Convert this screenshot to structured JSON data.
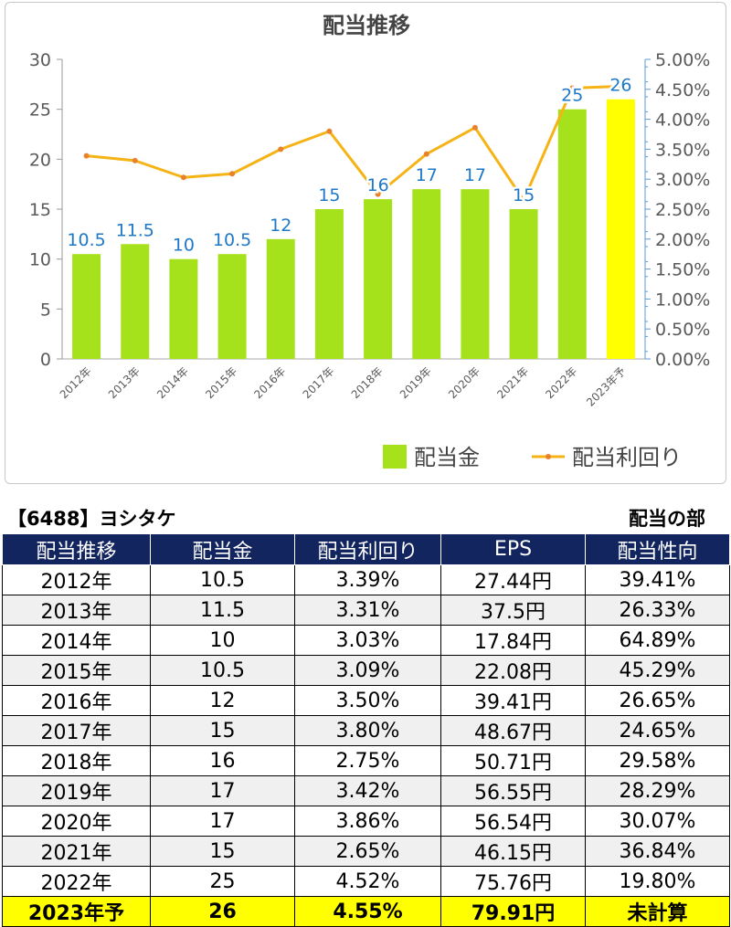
{
  "chart_data": {
    "type": "bar",
    "title": "配当推移",
    "categories": [
      "2012年",
      "2013年",
      "2014年",
      "2015年",
      "2016年",
      "2017年",
      "2018年",
      "2019年",
      "2020年",
      "2021年",
      "2022年",
      "2023年予"
    ],
    "series": [
      {
        "name": "配当金",
        "type": "bar",
        "axis": "left",
        "values": [
          10.5,
          11.5,
          10,
          10.5,
          12,
          15,
          16,
          17,
          17,
          15,
          25,
          26
        ],
        "labels": [
          "10.5",
          "11.5",
          "10",
          "10.5",
          "12",
          "15",
          "16",
          "17",
          "17",
          "15",
          "25",
          "26"
        ],
        "color": "#a6e21b",
        "highlight_color": "#ffff00"
      },
      {
        "name": "配当利回り",
        "type": "line",
        "axis": "right",
        "values": [
          3.39,
          3.31,
          3.03,
          3.09,
          3.5,
          3.8,
          2.75,
          3.42,
          3.86,
          2.65,
          4.52,
          4.55
        ],
        "color": "#f5b316"
      }
    ],
    "y_left": {
      "min": 0,
      "max": 30,
      "ticks": [
        "0",
        "5",
        "10",
        "15",
        "20",
        "25",
        "30"
      ]
    },
    "y_right": {
      "min": 0,
      "max": 5,
      "ticks": [
        "0.00%",
        "0.50%",
        "1.00%",
        "1.50%",
        "2.00%",
        "2.50%",
        "3.00%",
        "3.50%",
        "4.00%",
        "4.50%",
        "5.00%"
      ]
    },
    "grid": false,
    "legend_position": "bottom-right",
    "label_color": "#1e78c8"
  },
  "table": {
    "company": "【6488】ヨシタケ",
    "section": "配当の部",
    "headers": [
      "配当推移",
      "配当金",
      "配当利回り",
      "EPS",
      "配当性向"
    ],
    "rows": [
      [
        "2012年",
        "10.5",
        "3.39%",
        "27.44円",
        "39.41%"
      ],
      [
        "2013年",
        "11.5",
        "3.31%",
        "37.5円",
        "26.33%"
      ],
      [
        "2014年",
        "10",
        "3.03%",
        "17.84円",
        "64.89%"
      ],
      [
        "2015年",
        "10.5",
        "3.09%",
        "22.08円",
        "45.29%"
      ],
      [
        "2016年",
        "12",
        "3.50%",
        "39.41円",
        "26.65%"
      ],
      [
        "2017年",
        "15",
        "3.80%",
        "48.67円",
        "24.65%"
      ],
      [
        "2018年",
        "16",
        "2.75%",
        "50.71円",
        "29.58%"
      ],
      [
        "2019年",
        "17",
        "3.42%",
        "56.55円",
        "28.29%"
      ],
      [
        "2020年",
        "17",
        "3.86%",
        "56.54円",
        "30.07%"
      ],
      [
        "2021年",
        "15",
        "2.65%",
        "46.15円",
        "36.84%"
      ],
      [
        "2022年",
        "25",
        "4.52%",
        "75.76円",
        "19.80%"
      ],
      [
        "2023年予",
        "26",
        "4.55%",
        "79.91円",
        "未計算"
      ]
    ]
  }
}
